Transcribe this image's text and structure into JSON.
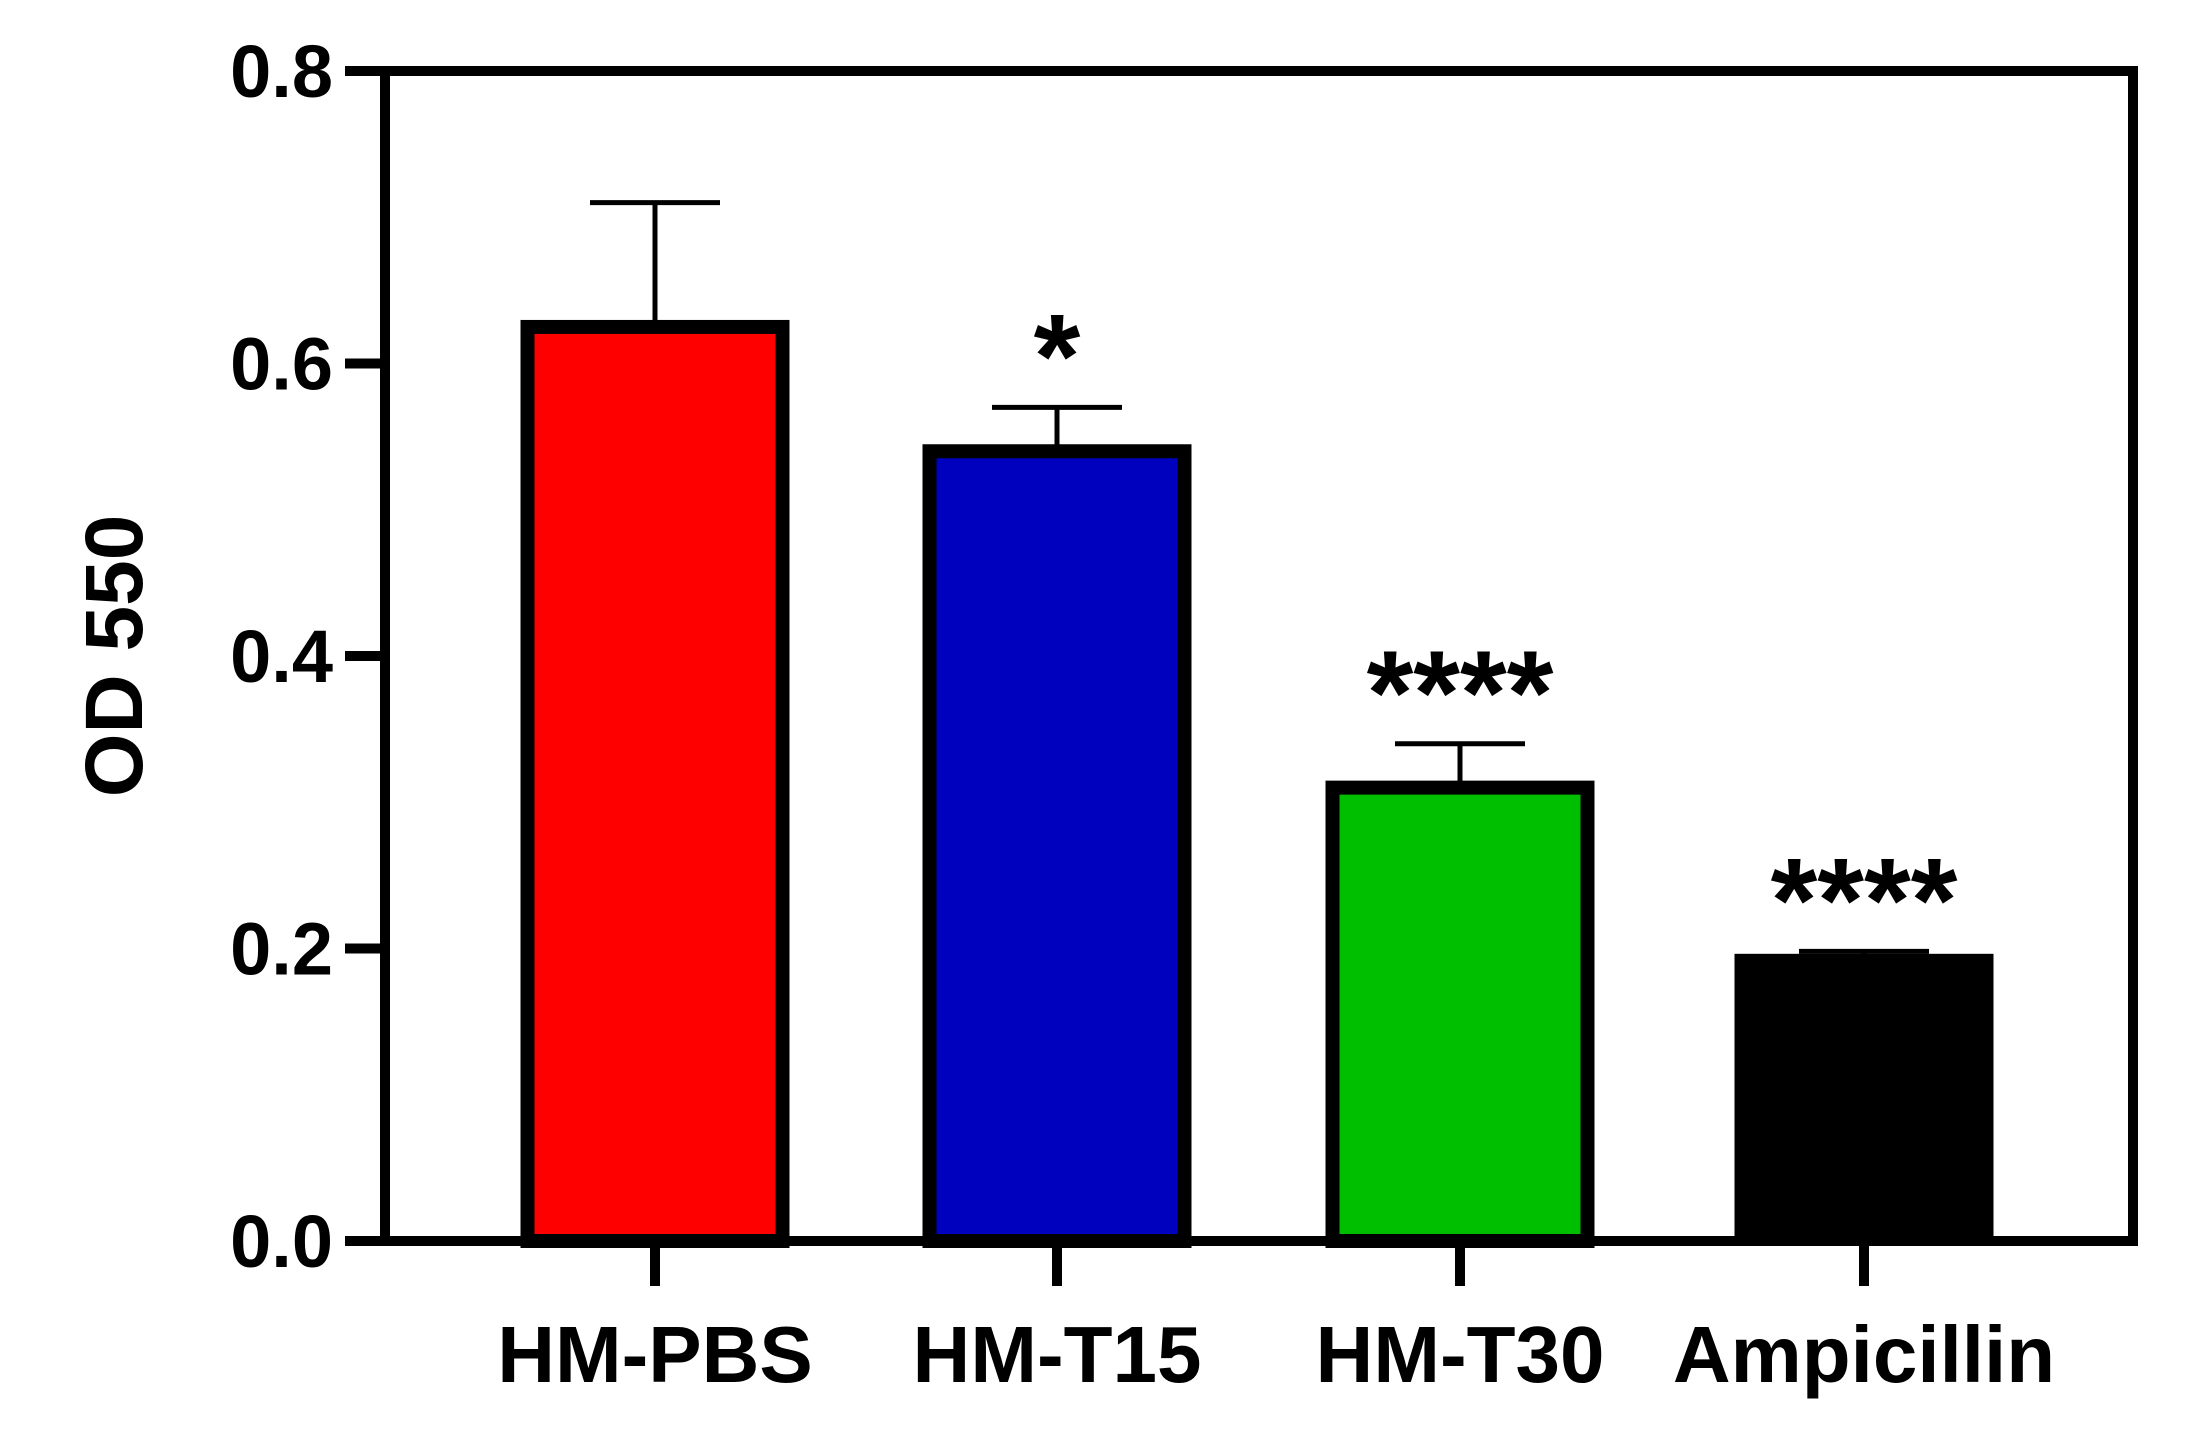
{
  "chart_data": {
    "type": "bar",
    "title": "",
    "xlabel": "",
    "ylabel": "OD 550",
    "ylim": [
      0,
      0.8
    ],
    "yticks": [
      0.0,
      0.2,
      0.4,
      0.6,
      0.8
    ],
    "ytick_labels": [
      "0.0",
      "0.2",
      "0.4",
      "0.6",
      "0.8"
    ],
    "categories": [
      "HM-PBS",
      "HM-T15",
      "HM-T30",
      "Ampicillin"
    ],
    "values": [
      0.625,
      0.54,
      0.31,
      0.195
    ],
    "errors": [
      0.085,
      0.03,
      0.03,
      0.003
    ],
    "colors": [
      "#ff0000",
      "#0000bf",
      "#00bf00",
      "#000000"
    ],
    "significance": [
      "",
      "*",
      "****",
      "****"
    ],
    "grid": false,
    "legend": "none"
  }
}
